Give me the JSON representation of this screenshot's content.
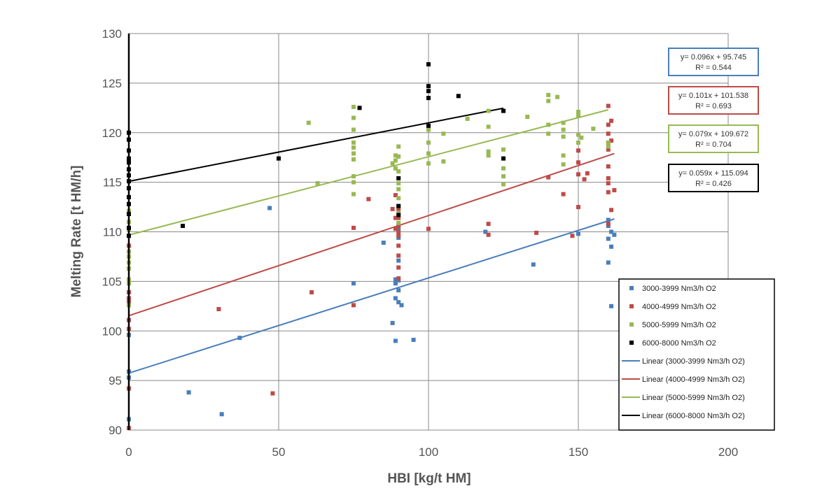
{
  "chart_data": {
    "type": "scatter",
    "title": "",
    "xlabel": "HBI [kg/t HM]",
    "ylabel": "Melting Rate [t HM/h]",
    "xlim": [
      0,
      200
    ],
    "ylim": [
      90,
      130
    ],
    "x_ticks": [
      "0",
      "50",
      "100",
      "150",
      "200"
    ],
    "y_ticks": [
      "90",
      "95",
      "100",
      "105",
      "110",
      "115",
      "120",
      "125",
      "130"
    ],
    "grid": true,
    "legend_position": "bottom-right",
    "series": [
      {
        "name": "3000-3999 Nm3/h O2",
        "color": "#4a7ebb",
        "points": [
          [
            0,
            91.1
          ],
          [
            0,
            95.3
          ],
          [
            0,
            95.9
          ],
          [
            0,
            99.6
          ],
          [
            20,
            93.8
          ],
          [
            31,
            91.6
          ],
          [
            37,
            99.3
          ],
          [
            47,
            112.4
          ],
          [
            75,
            104.8
          ],
          [
            85,
            108.9
          ],
          [
            88,
            100.8
          ],
          [
            89,
            105.2
          ],
          [
            89,
            104.8
          ],
          [
            89,
            103.3
          ],
          [
            89,
            99.0
          ],
          [
            90,
            110.4
          ],
          [
            90,
            109.4
          ],
          [
            90,
            107.1
          ],
          [
            90,
            105.1
          ],
          [
            90,
            104.1
          ],
          [
            90,
            102.9
          ],
          [
            91,
            102.6
          ],
          [
            95,
            99.1
          ],
          [
            119,
            110.0
          ],
          [
            135,
            106.7
          ],
          [
            150,
            109.8
          ],
          [
            160,
            111.2
          ],
          [
            160,
            110.6
          ],
          [
            160,
            109.3
          ],
          [
            160,
            106.9
          ],
          [
            161,
            110.0
          ],
          [
            161,
            108.5
          ],
          [
            161,
            102.5
          ],
          [
            162,
            109.7
          ]
        ]
      },
      {
        "name": "4000-4999 Nm3/h O2",
        "color": "#be4b48",
        "points": [
          [
            0,
            90.2
          ],
          [
            0,
            94.2
          ],
          [
            0,
            100.2
          ],
          [
            0,
            101.1
          ],
          [
            0,
            102.9
          ],
          [
            0,
            103.3
          ],
          [
            0,
            103.9
          ],
          [
            0,
            108.6
          ],
          [
            30,
            102.2
          ],
          [
            48,
            93.7
          ],
          [
            61,
            103.9
          ],
          [
            75,
            110.4
          ],
          [
            75,
            102.6
          ],
          [
            80,
            113.3
          ],
          [
            88,
            112.3
          ],
          [
            89,
            113.7
          ],
          [
            89,
            111.4
          ],
          [
            89,
            110.3
          ],
          [
            90,
            111.4
          ],
          [
            90,
            110.6
          ],
          [
            90,
            110.0
          ],
          [
            90,
            109.6
          ],
          [
            90,
            108.6
          ],
          [
            90,
            107.6
          ],
          [
            90,
            106.4
          ],
          [
            90,
            105.3
          ],
          [
            90,
            112.3
          ],
          [
            100,
            110.3
          ],
          [
            120,
            110.8
          ],
          [
            120,
            109.7
          ],
          [
            136,
            109.9
          ],
          [
            140,
            115.5
          ],
          [
            145,
            113.8
          ],
          [
            148,
            109.6
          ],
          [
            150,
            118.2
          ],
          [
            150,
            117.0
          ],
          [
            150,
            115.8
          ],
          [
            150,
            112.5
          ],
          [
            152,
            115.3
          ],
          [
            153,
            115.9
          ],
          [
            160,
            122.7
          ],
          [
            160,
            120.8
          ],
          [
            160,
            119.9
          ],
          [
            160,
            119.0
          ],
          [
            160,
            118.3
          ],
          [
            160,
            116.6
          ],
          [
            160,
            115.4
          ],
          [
            160,
            114.9
          ],
          [
            160,
            114.0
          ],
          [
            160,
            110.8
          ],
          [
            161,
            112.2
          ],
          [
            161,
            119.2
          ],
          [
            161,
            121.2
          ],
          [
            162,
            114.2
          ]
        ]
      },
      {
        "name": "5000-5999 Nm3/h O2",
        "color": "#98b954",
        "points": [
          [
            0,
            102.6
          ],
          [
            0,
            104.8
          ],
          [
            0,
            105.2
          ],
          [
            0,
            106.3
          ],
          [
            0,
            106.9
          ],
          [
            0,
            107.5
          ],
          [
            0,
            108.0
          ],
          [
            0,
            110.2
          ],
          [
            0,
            111.0
          ],
          [
            0,
            112.1
          ],
          [
            60,
            121.0
          ],
          [
            63,
            114.9
          ],
          [
            75,
            122.6
          ],
          [
            75,
            121.5
          ],
          [
            75,
            120.3
          ],
          [
            75,
            119.0
          ],
          [
            75,
            118.5
          ],
          [
            75,
            117.9
          ],
          [
            75,
            117.3
          ],
          [
            75,
            115.6
          ],
          [
            75,
            115.0
          ],
          [
            75,
            113.8
          ],
          [
            88,
            116.9
          ],
          [
            89,
            117.7
          ],
          [
            89,
            117.2
          ],
          [
            89,
            116.4
          ],
          [
            90,
            118.6
          ],
          [
            90,
            117.6
          ],
          [
            90,
            116.1
          ],
          [
            90,
            114.9
          ],
          [
            90,
            114.3
          ],
          [
            90,
            113.4
          ],
          [
            90,
            112.6
          ],
          [
            90,
            111.9
          ],
          [
            90,
            110.9
          ],
          [
            100,
            120.3
          ],
          [
            100,
            119.0
          ],
          [
            100,
            117.9
          ],
          [
            100,
            116.9
          ],
          [
            105,
            117.1
          ],
          [
            105,
            119.9
          ],
          [
            113,
            121.4
          ],
          [
            120,
            122.2
          ],
          [
            120,
            120.6
          ],
          [
            120,
            118.1
          ],
          [
            120,
            117.7
          ],
          [
            125,
            118.3
          ],
          [
            125,
            116.4
          ],
          [
            125,
            115.6
          ],
          [
            125,
            114.8
          ],
          [
            133,
            121.6
          ],
          [
            140,
            123.8
          ],
          [
            140,
            123.2
          ],
          [
            140,
            120.8
          ],
          [
            140,
            119.9
          ],
          [
            143,
            123.6
          ],
          [
            145,
            121.0
          ],
          [
            145,
            120.3
          ],
          [
            145,
            119.6
          ],
          [
            145,
            117.7
          ],
          [
            145,
            116.8
          ],
          [
            150,
            122.1
          ],
          [
            150,
            121.7
          ],
          [
            150,
            119.8
          ],
          [
            150,
            119.0
          ],
          [
            151,
            119.5
          ],
          [
            155,
            120.4
          ],
          [
            160,
            118.6
          ],
          [
            160,
            119.0
          ]
        ]
      },
      {
        "name": "6000-8000 Nm3/h O2",
        "color": "#000000",
        "points": [
          [
            0,
            120.0
          ],
          [
            0,
            119.3
          ],
          [
            0,
            118.2
          ],
          [
            0,
            117.4
          ],
          [
            0,
            117.0
          ],
          [
            0,
            116.3
          ],
          [
            0,
            115.7
          ],
          [
            0,
            115.1
          ],
          [
            0,
            114.4
          ],
          [
            0,
            113.5
          ],
          [
            0,
            112.8
          ],
          [
            0,
            111.8
          ],
          [
            0,
            110.4
          ],
          [
            0,
            109.6
          ],
          [
            18,
            110.6
          ],
          [
            50,
            117.4
          ],
          [
            77,
            122.5
          ],
          [
            90,
            115.4
          ],
          [
            90,
            112.6
          ],
          [
            90,
            111.7
          ],
          [
            100,
            126.9
          ],
          [
            100,
            124.7
          ],
          [
            100,
            124.2
          ],
          [
            100,
            123.5
          ],
          [
            100,
            120.7
          ],
          [
            110,
            123.7
          ],
          [
            125,
            122.2
          ],
          [
            125,
            117.4
          ]
        ]
      }
    ],
    "trendlines": [
      {
        "name": "Linear (3000-3999 Nm3/h O2)",
        "color": "#4a7ebb",
        "slope": 0.096,
        "intercept": 95.745,
        "x_range": [
          0,
          162
        ],
        "equation": "y= 0.096x + 95.745",
        "r2": "R² = 0.544"
      },
      {
        "name": "Linear (4000-4999 Nm3/h O2)",
        "color": "#be4b48",
        "slope": 0.101,
        "intercept": 101.538,
        "x_range": [
          0,
          162
        ],
        "equation": "y= 0.101x + 101.538",
        "r2": "R² = 0.693"
      },
      {
        "name": "Linear (5000-5999 Nm3/h O2)",
        "color": "#98b954",
        "slope": 0.079,
        "intercept": 109.672,
        "x_range": [
          0,
          160
        ],
        "equation": "y= 0.079x + 109.672",
        "r2": "R² = 0.704"
      },
      {
        "name": "Linear (6000-8000 Nm3/h O2)",
        "color": "#000000",
        "slope": 0.059,
        "intercept": 115.094,
        "x_range": [
          0,
          125
        ],
        "equation": "y= 0.059x + 115.094",
        "r2": "R² = 0.426"
      }
    ]
  }
}
